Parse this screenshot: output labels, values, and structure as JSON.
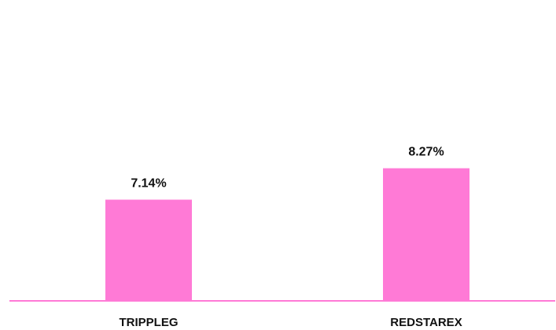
{
  "chart_data": {
    "type": "bar",
    "categories": [
      "TRIPPLEG",
      "REDSTAREX"
    ],
    "values": [
      7.14,
      8.27
    ],
    "data_labels": [
      "7.14%",
      "8.27%"
    ],
    "title": "",
    "xlabel": "",
    "ylabel": "",
    "grid": false,
    "legend": "none",
    "colors": {
      "bar": "#ff7ad6",
      "axis": "#ff7ad6",
      "text": "#111111"
    }
  }
}
